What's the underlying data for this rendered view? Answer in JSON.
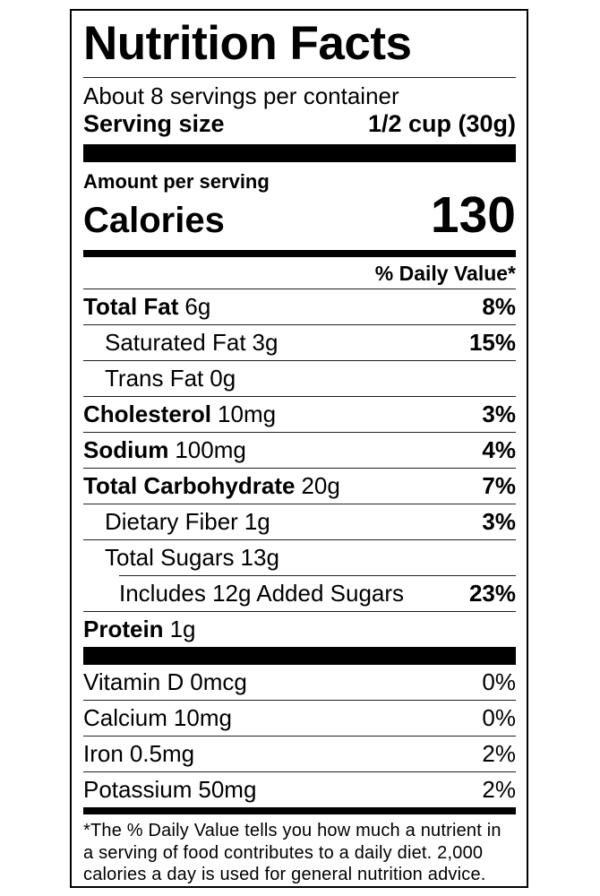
{
  "label": {
    "title": "Nutrition Facts",
    "servings_per_container": "About 8 servings per container",
    "serving_size_label": "Serving size",
    "serving_size_value": "1/2 cup (30g)",
    "amount_per_serving": "Amount per serving",
    "calories_label": "Calories",
    "calories_value": "130",
    "daily_value_header": "% Daily Value*",
    "nutrients": [
      {
        "name": "Total Fat",
        "amount": "6g",
        "dv": "8%"
      },
      {
        "name": "Saturated Fat",
        "amount": "3g",
        "dv": "15%"
      },
      {
        "name": "Trans Fat",
        "amount": "0g",
        "dv": ""
      },
      {
        "name": "Cholesterol",
        "amount": "10mg",
        "dv": "3%"
      },
      {
        "name": "Sodium",
        "amount": "100mg",
        "dv": "4%"
      },
      {
        "name": "Total Carbohydrate",
        "amount": "20g",
        "dv": "7%"
      },
      {
        "name": "Dietary Fiber",
        "amount": "1g",
        "dv": "3%"
      },
      {
        "name": "Total Sugars",
        "amount": "13g",
        "dv": ""
      },
      {
        "name": "Includes 12g Added Sugars",
        "amount": "",
        "dv": "23%"
      },
      {
        "name": "Protein",
        "amount": "1g",
        "dv": ""
      }
    ],
    "vitamins": [
      {
        "name": "Vitamin D",
        "amount": "0mcg",
        "dv": "0%"
      },
      {
        "name": "Calcium",
        "amount": "10mg",
        "dv": "0%"
      },
      {
        "name": "Iron",
        "amount": "0.5mg",
        "dv": "2%"
      },
      {
        "name": "Potassium",
        "amount": "50mg",
        "dv": "2%"
      }
    ],
    "footnote": "*The % Daily Value tells you how much a nutrient in a serving of food contributes to a daily diet. 2,000 calories a day is used for general nutrition advice."
  },
  "colors": {
    "text": "#000000",
    "background": "#ffffff",
    "separator_bar": "#000000",
    "hairline": "#1f1f1f"
  }
}
